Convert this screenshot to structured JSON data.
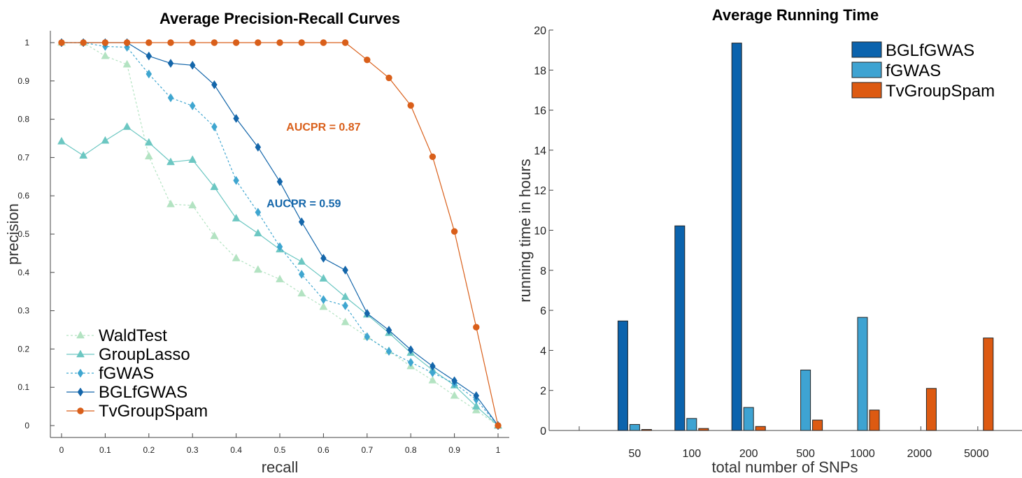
{
  "chart_data": [
    {
      "type": "line",
      "title": "Average Precision-Recall Curves",
      "xlabel": "recall",
      "ylabel": "precision",
      "xlim": [
        0,
        1
      ],
      "ylim": [
        0,
        1
      ],
      "xticks": [
        "0",
        "0.1",
        "0.2",
        "0.3",
        "0.4",
        "0.5",
        "0.6",
        "0.7",
        "0.8",
        "0.9",
        "1"
      ],
      "yticks": [
        "0",
        "0.1",
        "0.2",
        "0.3",
        "0.4",
        "0.5",
        "0.6",
        "0.7",
        "0.8",
        "0.9",
        "1"
      ],
      "grid": false,
      "legend_position": "bottom-left",
      "x": [
        0,
        0.05,
        0.1,
        0.15,
        0.2,
        0.25,
        0.3,
        0.35,
        0.4,
        0.45,
        0.5,
        0.55,
        0.6,
        0.65,
        0.7,
        0.75,
        0.8,
        0.85,
        0.9,
        0.95,
        1
      ],
      "series": [
        {
          "name": "WaldTest",
          "color": "#b3e3c2",
          "line": "dashed",
          "marker": "triangle",
          "values": [
            1,
            1,
            0.965,
            0.943,
            0.703,
            0.578,
            0.575,
            0.495,
            0.437,
            0.407,
            0.382,
            0.345,
            0.31,
            0.27,
            0.232,
            0.195,
            0.155,
            0.118,
            0.078,
            0.04,
            0
          ]
        },
        {
          "name": "GroupLasso",
          "color": "#6cc7c2",
          "line": "solid",
          "marker": "triangle",
          "values": [
            0.742,
            0.705,
            0.744,
            0.78,
            0.739,
            0.688,
            0.694,
            0.623,
            0.541,
            0.502,
            0.46,
            0.428,
            0.384,
            0.336,
            0.29,
            0.242,
            0.19,
            0.145,
            0.105,
            0.05,
            0
          ]
        },
        {
          "name": "fGWAS",
          "color": "#3fa6d0",
          "line": "dashed",
          "marker": "diamond",
          "values": [
            1,
            1,
            0.99,
            0.988,
            0.918,
            0.856,
            0.835,
            0.78,
            0.64,
            0.557,
            0.467,
            0.395,
            0.329,
            0.313,
            0.232,
            0.194,
            0.165,
            0.138,
            0.11,
            0.068,
            0
          ]
        },
        {
          "name": "BGLfGWAS",
          "color": "#1466aa",
          "line": "solid",
          "marker": "diamond",
          "values": [
            1,
            1,
            1,
            1,
            0.965,
            0.946,
            0.941,
            0.89,
            0.802,
            0.727,
            0.637,
            0.532,
            0.437,
            0.406,
            0.293,
            0.249,
            0.198,
            0.155,
            0.117,
            0.078,
            0
          ]
        },
        {
          "name": "TvGroupSpam",
          "color": "#d95f1a",
          "line": "solid",
          "marker": "circle",
          "values": [
            1,
            1,
            1,
            1,
            1,
            1,
            1,
            1,
            1,
            1,
            1,
            1,
            1,
            1,
            0.955,
            0.908,
            0.836,
            0.702,
            0.507,
            0.257,
            0
          ]
        }
      ],
      "annotations": [
        {
          "text": "AUCPR = 0.87",
          "x": 0.6,
          "y": 0.77,
          "color": "#d95f1a"
        },
        {
          "text": "AUCPR = 0.59",
          "x": 0.555,
          "y": 0.57,
          "color": "#1466aa"
        }
      ]
    },
    {
      "type": "bar",
      "title": "Average Running Time",
      "xlabel": "total number of SNPs",
      "ylabel": "running time in hours",
      "ylim": [
        0,
        20
      ],
      "yticks": [
        "0",
        "2",
        "4",
        "6",
        "8",
        "10",
        "12",
        "14",
        "16",
        "18",
        "20"
      ],
      "categories": [
        "50",
        "100",
        "200",
        "500",
        "1000",
        "2000",
        "5000"
      ],
      "grid": false,
      "legend_position": "top-right",
      "series": [
        {
          "name": "BGLfGWAS",
          "color": "#0b63ad",
          "values": [
            5.47,
            10.22,
            19.35,
            null,
            null,
            null,
            null
          ]
        },
        {
          "name": "fGWAS",
          "color": "#3ea3d2",
          "values": [
            0.3,
            0.6,
            1.15,
            3.02,
            5.65,
            null,
            null
          ]
        },
        {
          "name": "TvGroupSpam",
          "color": "#dd5a12",
          "values": [
            0.05,
            0.1,
            0.2,
            0.52,
            1.02,
            2.1,
            4.62
          ]
        }
      ]
    }
  ]
}
